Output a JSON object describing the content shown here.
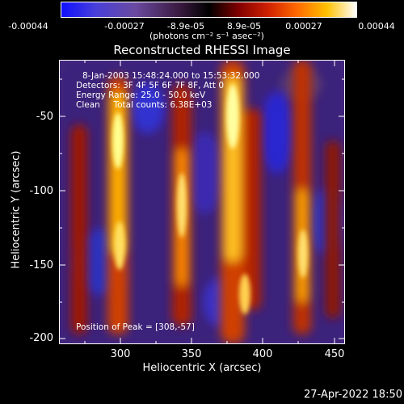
{
  "colorbar": {
    "ticks": [
      "-0.00044",
      "-0.00027",
      "-8.9e-05",
      "8.9e-05",
      "0.00027",
      "0.00044"
    ],
    "units_label": "(photons cm⁻² s⁻¹ asec⁻²)"
  },
  "title": "Reconstructed RHESSI Image",
  "info": {
    "line1": "8-Jan-2003 15:48:24.000 to 15:53:32.000",
    "line2": "Detectors: 3F 4F 5F 6F 7F 8F, Att 0",
    "line3": "Energy Range: 25.0 - 50.0 keV",
    "line4": "Clean     Total counts: 6.38E+03",
    "peak": "Position of Peak = [308,-57]"
  },
  "axes": {
    "xlabel": "Heliocentric X (arcsec)",
    "ylabel": "Heliocentric Y (arcsec)",
    "xticks": [
      "300",
      "350",
      "400",
      "450"
    ],
    "yticks": [
      "-50",
      "-100",
      "-150",
      "-200"
    ]
  },
  "timestamp": "27-Apr-2022 18:50",
  "colors": {
    "text": "#ffffff",
    "background": "#000000"
  }
}
